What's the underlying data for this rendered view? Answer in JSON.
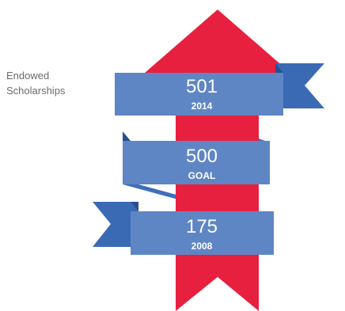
{
  "side_label": {
    "line1": "Endowed",
    "line2": "Scholarships"
  },
  "banners": [
    {
      "value": "501",
      "caption": "2014"
    },
    {
      "value": "500",
      "caption": "GOAL"
    },
    {
      "value": "175",
      "caption": "2008"
    }
  ],
  "colors": {
    "arrow": "#e8203f",
    "banner_face": "#5f86c4",
    "banner_tail": "#3a6ab4",
    "banner_fold": "#27508f",
    "ribbon_back": "#3f6fb8"
  }
}
